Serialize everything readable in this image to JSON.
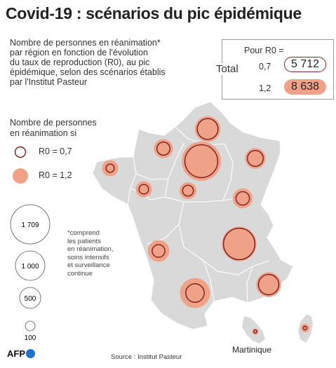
{
  "title": "Covid-19 : scénarios du pic épidémique",
  "subtitle_lines": [
    "Nombre de personnes en réanimation*",
    "par région en fonction de l'évolution",
    "du taux de reproduction (R0), au pic",
    "épidémique, selon des scénarios établis",
    "par l'Institut Pasteur"
  ],
  "legend": {
    "heading_lines": [
      "Nombre de personnes",
      "en réanimation si"
    ],
    "r07_label": "R0 = 0,7",
    "r12_label": "R0 = 1,2",
    "size_labels": [
      "1 709",
      "1 000",
      "500",
      "100"
    ]
  },
  "footnote_lines": [
    "*comprend",
    "les patients",
    "en réanimation,",
    "soins intensifs",
    "et surveillance",
    "continue"
  ],
  "totals": {
    "header": "Pour R0 =",
    "row_label": "Total",
    "rows": [
      {
        "r0": "0,7",
        "value": "5 712"
      },
      {
        "r0": "1,2",
        "value": "8 638"
      }
    ]
  },
  "chart_data": {
    "type": "proportional-symbol-map",
    "title": "Covid-19 : scénarios du pic épidémique",
    "reference_sizes": [
      1709,
      1000,
      500,
      100
    ],
    "series": [
      {
        "name": "R0 = 0,7",
        "style": "outline"
      },
      {
        "name": "R0 = 1,2",
        "style": "filled"
      }
    ],
    "regions": [
      {
        "id": "hauts-de-france",
        "r0_07": 480,
        "r0_12": 720
      },
      {
        "id": "normandie",
        "r0_07": 190,
        "r0_12": 400
      },
      {
        "id": "ile-de-france",
        "r0_07": 1190,
        "r0_12": 1709
      },
      {
        "id": "grand-est",
        "r0_07": 280,
        "r0_12": 470
      },
      {
        "id": "bretagne",
        "r0_07": 75,
        "r0_12": 290
      },
      {
        "id": "pays-de-la-loire",
        "r0_07": 100,
        "r0_12": 290
      },
      {
        "id": "centre-val-de-loire",
        "r0_07": 130,
        "r0_12": 320
      },
      {
        "id": "bourgogne-franche-comte",
        "r0_07": 200,
        "r0_12": 440
      },
      {
        "id": "nouvelle-aquitaine",
        "r0_07": 180,
        "r0_12": 520
      },
      {
        "id": "auvergne-rhone-alpes",
        "r0_07": 1090,
        "r0_12": 1320
      },
      {
        "id": "occitanie",
        "r0_07": 380,
        "r0_12": 1000
      },
      {
        "id": "provence-alpes-cote-d-azur",
        "r0_07": 460,
        "r0_12": 680
      },
      {
        "id": "corse",
        "r0_07": 14,
        "r0_12": 80
      },
      {
        "id": "martinique",
        "r0_07": 12,
        "r0_12": 45
      }
    ]
  },
  "source": "Source : Institut Pasteur",
  "martinique_label": "Martinique",
  "logo_text": "AFP",
  "colors": {
    "fill": "#f0a289",
    "outline": "#7a1c1c",
    "map": "#d9d9d9",
    "logo_dot": "#1e72c9"
  }
}
